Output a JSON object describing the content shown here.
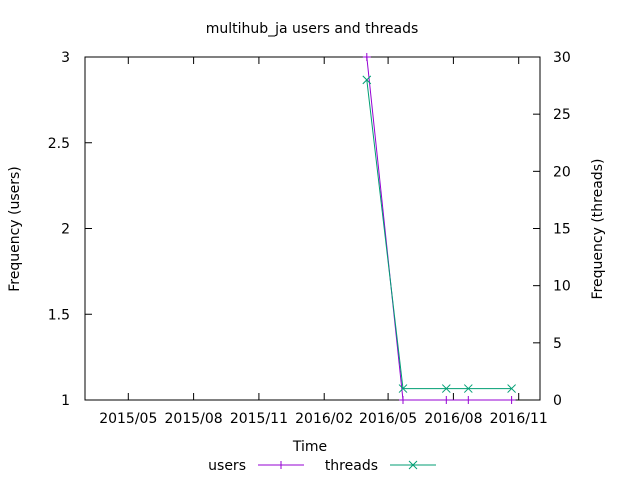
{
  "chart_data": {
    "type": "line",
    "title": "multihub_ja users and threads",
    "xlabel": "Time",
    "ylabel_left": "Frequency (users)",
    "ylabel_right": "Frequency (threads)",
    "x_range": [
      "2015-03-01",
      "2016-12-01"
    ],
    "x_ticks": [
      {
        "date": "2015-05-01",
        "label": "2015/05"
      },
      {
        "date": "2015-08-01",
        "label": "2015/08"
      },
      {
        "date": "2015-11-01",
        "label": "2015/11"
      },
      {
        "date": "2016-02-01",
        "label": "2016/02"
      },
      {
        "date": "2016-05-01",
        "label": "2016/05"
      },
      {
        "date": "2016-08-01",
        "label": "2016/08"
      },
      {
        "date": "2016-11-01",
        "label": "2016/11"
      }
    ],
    "y_left": {
      "range": [
        1,
        3
      ],
      "ticks": [
        1,
        1.5,
        2,
        2.5,
        3
      ],
      "tick_labels": [
        "1",
        "1.5",
        "2",
        "2.5",
        "3"
      ]
    },
    "y_right": {
      "range": [
        0,
        30
      ],
      "ticks": [
        0,
        5,
        10,
        15,
        20,
        25,
        30
      ],
      "tick_labels": [
        "0",
        "5",
        "10",
        "15",
        "20",
        "25",
        "30"
      ]
    },
    "legend_placement": "bottom",
    "grid": false,
    "series": [
      {
        "name": "users",
        "axis": "left",
        "color": "#9400d3",
        "marker": "plus",
        "points": [
          {
            "x": "2016-04-01",
            "y": 3
          },
          {
            "x": "2016-05-22",
            "y": 1
          },
          {
            "x": "2016-07-22",
            "y": 1
          },
          {
            "x": "2016-08-22",
            "y": 1
          },
          {
            "x": "2016-10-22",
            "y": 1
          }
        ]
      },
      {
        "name": "threads",
        "axis": "right",
        "color": "#009e73",
        "marker": "cross",
        "points": [
          {
            "x": "2016-04-01",
            "y": 28
          },
          {
            "x": "2016-05-22",
            "y": 1
          },
          {
            "x": "2016-07-22",
            "y": 1
          },
          {
            "x": "2016-08-22",
            "y": 1
          },
          {
            "x": "2016-10-22",
            "y": 1
          }
        ]
      }
    ]
  }
}
